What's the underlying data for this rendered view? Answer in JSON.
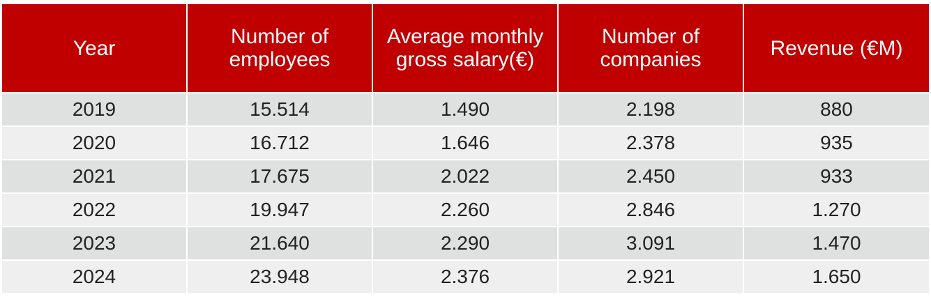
{
  "table": {
    "headers": [
      "Year",
      "Number of employees",
      "Average monthly gross salary(€)",
      "Number of companies",
      "Revenue (€M)"
    ],
    "rows": [
      [
        "2019",
        "15.514",
        "1.490",
        "2.198",
        "880"
      ],
      [
        "2020",
        "16.712",
        "1.646",
        "2.378",
        "935"
      ],
      [
        "2021",
        "17.675",
        "2.022",
        "2.450",
        "933"
      ],
      [
        "2022",
        "19.947",
        "2.260",
        "2.846",
        "1.270"
      ],
      [
        "2023",
        "21.640",
        "2.290",
        "3.091",
        "1.470"
      ],
      [
        "2024",
        "23.948",
        "2.376",
        "2.921",
        "1.650"
      ]
    ]
  },
  "colors": {
    "header_bg": "#c00000",
    "header_text": "#ffffff",
    "row_odd_bg": "#dfe1e0",
    "row_even_bg": "#efefef"
  }
}
